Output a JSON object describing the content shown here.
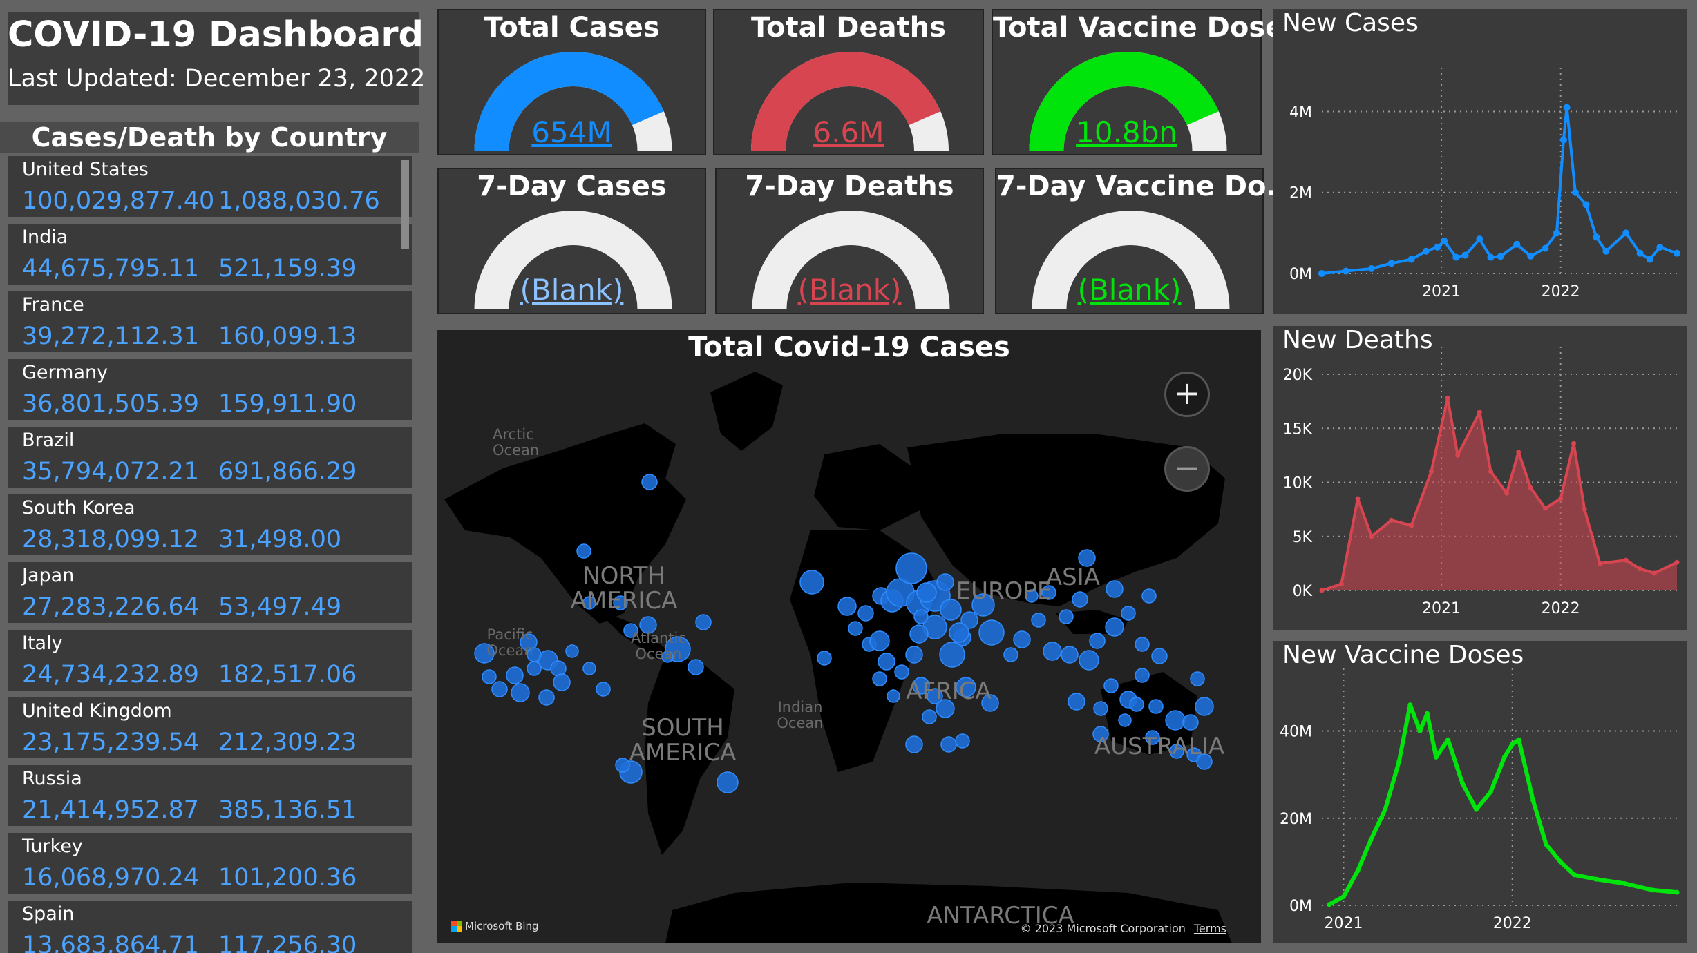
{
  "header": {
    "title": "COVID-19 Dashboard",
    "updated": "Last Updated: December 23, 2022"
  },
  "countries": {
    "title": "Cases/Death by Country",
    "rows": [
      {
        "name": "United States",
        "cases": "100,029,877.40",
        "deaths": "1,088,030.76"
      },
      {
        "name": "India",
        "cases": "44,675,795.11",
        "deaths": "521,159.39"
      },
      {
        "name": "France",
        "cases": "39,272,112.31",
        "deaths": "160,099.13"
      },
      {
        "name": "Germany",
        "cases": "36,801,505.39",
        "deaths": "159,911.90"
      },
      {
        "name": "Brazil",
        "cases": "35,794,072.21",
        "deaths": "691,866.29"
      },
      {
        "name": "South Korea",
        "cases": "28,318,099.12",
        "deaths": "31,498.00"
      },
      {
        "name": "Japan",
        "cases": "27,283,226.64",
        "deaths": "53,497.49"
      },
      {
        "name": "Italy",
        "cases": "24,734,232.89",
        "deaths": "182,517.06"
      },
      {
        "name": "United Kingdom",
        "cases": "23,175,239.54",
        "deaths": "212,309.23"
      },
      {
        "name": "Russia",
        "cases": "21,414,952.87",
        "deaths": "385,136.51"
      },
      {
        "name": "Turkey",
        "cases": "16,068,970.24",
        "deaths": "101,200.36"
      },
      {
        "name": "Spain",
        "cases": "13,683,864.71",
        "deaths": "117,256.30"
      }
    ]
  },
  "kpis": [
    {
      "title": "Total Cases",
      "value": "654M",
      "fraction": 0.87,
      "color": "#118dff"
    },
    {
      "title": "Total Deaths",
      "value": "6.6M",
      "fraction": 0.87,
      "color": "#d64550"
    },
    {
      "title": "Total Vaccine Doses",
      "value": "10.8bn",
      "fraction": 0.87,
      "color": "#00e40c"
    },
    {
      "title": "7-Day Cases",
      "value": "(Blank)",
      "fraction": 0,
      "color": "#8cc2ff"
    },
    {
      "title": "7-Day Deaths",
      "value": "(Blank)",
      "fraction": 0,
      "color": "#d64550"
    },
    {
      "title": "7-Day Vaccine Do...",
      "value": "(Blank)",
      "fraction": 0,
      "color": "#00e40c"
    }
  ],
  "map": {
    "title": "Total Covid-19 Cases",
    "continents": [
      "NORTH AMERICA",
      "SOUTH AMERICA",
      "EUROPE",
      "AFRICA",
      "ASIA",
      "AUSTRALIA",
      "ANTARCTICA"
    ],
    "oceans": [
      "Arctic Ocean",
      "Pacific Ocean",
      "Atlantic Ocean",
      "Indian Ocean"
    ],
    "zoom_in": "+",
    "zoom_out": "−",
    "attribution": "Microsoft Bing",
    "copyright": "© 2023 Microsoft Corporation",
    "terms": "Terms"
  },
  "chart_data": [
    {
      "type": "scatter",
      "title": "New Cases",
      "color": "#118dff",
      "ylim": [
        0,
        4400000
      ],
      "y_ticks": [
        0,
        2000000,
        4000000
      ],
      "y_tick_labels": [
        "0M",
        "2M",
        "4M"
      ],
      "x_range": [
        "2020-01-01",
        "2022-12-23"
      ],
      "x_ticks": [
        "2021-01-01",
        "2022-01-01"
      ],
      "x_tick_labels": [
        "2021",
        "2022"
      ],
      "grid": true,
      "x": [
        "2020-01-01",
        "2020-03-15",
        "2020-06-01",
        "2020-08-01",
        "2020-10-01",
        "2020-11-15",
        "2020-12-20",
        "2021-01-10",
        "2021-02-15",
        "2021-03-15",
        "2021-04-28",
        "2021-06-01",
        "2021-07-01",
        "2021-08-20",
        "2021-10-01",
        "2021-11-15",
        "2021-12-20",
        "2022-01-10",
        "2022-01-20",
        "2022-02-15",
        "2022-03-20",
        "2022-04-20",
        "2022-05-20",
        "2022-07-20",
        "2022-09-01",
        "2022-10-01",
        "2022-11-01",
        "2022-12-23"
      ],
      "values": [
        0,
        60000,
        120000,
        250000,
        350000,
        550000,
        650000,
        800000,
        400000,
        450000,
        850000,
        400000,
        420000,
        720000,
        430000,
        620000,
        1000000,
        3300000,
        4100000,
        2000000,
        1700000,
        900000,
        550000,
        1000000,
        500000,
        350000,
        650000,
        500000
      ]
    },
    {
      "type": "area",
      "title": "New Deaths",
      "color": "#d64550",
      "ylim": [
        0,
        20000
      ],
      "y_ticks": [
        0,
        5000,
        10000,
        15000,
        20000
      ],
      "y_tick_labels": [
        "0K",
        "5K",
        "10K",
        "15K",
        "20K"
      ],
      "x_range": [
        "2020-01-01",
        "2022-12-23"
      ],
      "x_ticks": [
        "2021-01-01",
        "2022-01-01"
      ],
      "x_tick_labels": [
        "2021",
        "2022"
      ],
      "grid": true,
      "x": [
        "2020-01-01",
        "2020-03-01",
        "2020-04-20",
        "2020-06-01",
        "2020-08-01",
        "2020-10-01",
        "2020-12-01",
        "2021-01-20",
        "2021-02-20",
        "2021-04-28",
        "2021-06-01",
        "2021-07-20",
        "2021-08-25",
        "2021-10-01",
        "2021-11-15",
        "2022-01-01",
        "2022-02-10",
        "2022-03-15",
        "2022-05-01",
        "2022-07-20",
        "2022-09-01",
        "2022-10-15",
        "2022-12-23"
      ],
      "values": [
        0,
        600,
        8500,
        5000,
        6500,
        6000,
        11000,
        17800,
        12500,
        16500,
        11000,
        9000,
        12800,
        9500,
        7600,
        8500,
        13600,
        7500,
        2500,
        2800,
        2000,
        1600,
        2600
      ]
    },
    {
      "type": "line",
      "title": "New Vaccine Doses",
      "color": "#00e40c",
      "ylim": [
        0,
        48000000
      ],
      "y_ticks": [
        0,
        20000000,
        40000000
      ],
      "y_tick_labels": [
        "0M",
        "20M",
        "40M"
      ],
      "x_range": [
        "2020-11-15",
        "2022-12-23"
      ],
      "x_ticks": [
        "2021-01-01",
        "2022-01-01"
      ],
      "x_tick_labels": [
        "2021",
        "2022"
      ],
      "grid": true,
      "x": [
        "2020-12-01",
        "2021-01-01",
        "2021-02-01",
        "2021-03-01",
        "2021-04-01",
        "2021-05-01",
        "2021-05-25",
        "2021-06-15",
        "2021-07-01",
        "2021-07-20",
        "2021-08-15",
        "2021-09-15",
        "2021-10-15",
        "2021-11-15",
        "2021-12-15",
        "2022-01-01",
        "2022-01-15",
        "2022-02-15",
        "2022-03-15",
        "2022-04-15",
        "2022-05-15",
        "2022-07-01",
        "2022-09-01",
        "2022-11-01",
        "2022-12-23"
      ],
      "values": [
        200000,
        2000000,
        8000000,
        15000000,
        22000000,
        33000000,
        46000000,
        40000000,
        44000000,
        34000000,
        38000000,
        28000000,
        22000000,
        26000000,
        34000000,
        37000000,
        38000000,
        24000000,
        14000000,
        10000000,
        7000000,
        6000000,
        5000000,
        3500000,
        3000000
      ]
    }
  ]
}
